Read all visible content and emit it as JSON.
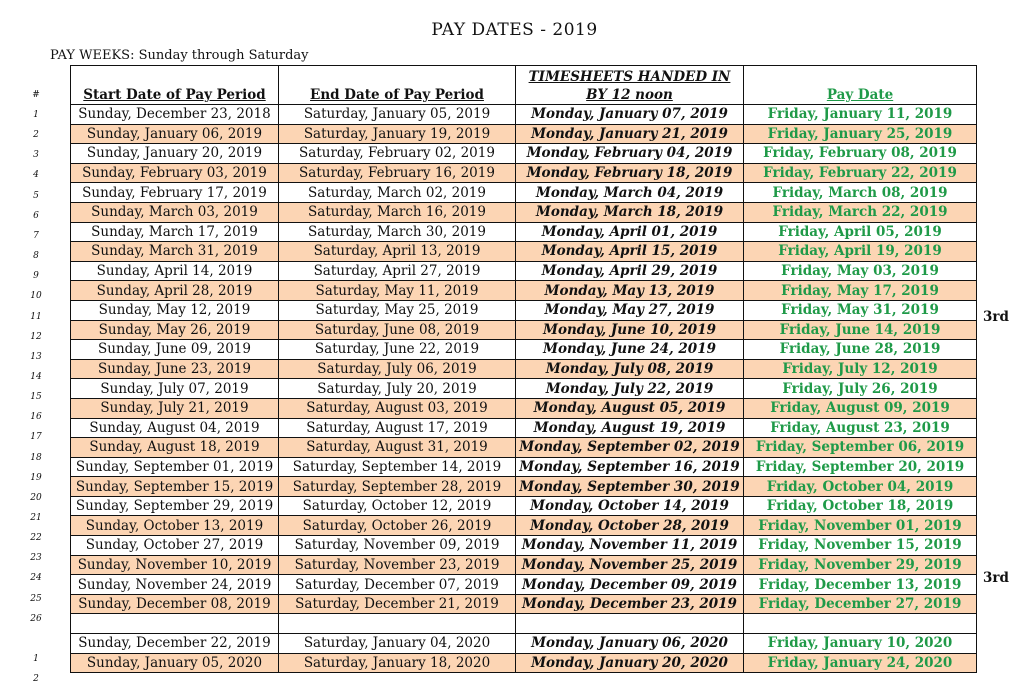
{
  "title": "PAY DATES - 2019",
  "subtitle": "PAY WEEKS:  Sunday through Saturday",
  "headers": {
    "num": "#",
    "start": "Start Date of Pay Period",
    "end": "End Date of Pay Period",
    "timesheet": "TIMESHEETS HANDED IN BY 12 noon",
    "pay": "Pay Date"
  },
  "colors": {
    "pay_green": "#1f9a48",
    "alt_row": "#fcd5b4"
  },
  "rows": [
    {
      "n": "1",
      "start": "Sunday, December 23, 2018",
      "end": "Saturday, January 05, 2019",
      "ts": "Monday, January 07, 2019",
      "pay": "Friday, January 11, 2019"
    },
    {
      "n": "2",
      "start": "Sunday, January 06, 2019",
      "end": "Saturday, January 19, 2019",
      "ts": "Monday, January 21, 2019",
      "pay": "Friday, January 25, 2019"
    },
    {
      "n": "3",
      "start": "Sunday, January 20, 2019",
      "end": "Saturday, February 02, 2019",
      "ts": "Monday, February 04, 2019",
      "pay": "Friday, February 08, 2019"
    },
    {
      "n": "4",
      "start": "Sunday, February 03, 2019",
      "end": "Saturday, February 16, 2019",
      "ts": "Monday, February 18, 2019",
      "pay": "Friday, February 22, 2019"
    },
    {
      "n": "5",
      "start": "Sunday, February 17, 2019",
      "end": "Saturday, March 02, 2019",
      "ts": "Monday, March 04, 2019",
      "pay": "Friday, March 08, 2019"
    },
    {
      "n": "6",
      "start": "Sunday, March 03, 2019",
      "end": "Saturday, March 16, 2019",
      "ts": "Monday, March 18, 2019",
      "pay": "Friday, March 22, 2019"
    },
    {
      "n": "7",
      "start": "Sunday, March 17, 2019",
      "end": "Saturday, March 30, 2019",
      "ts": "Monday, April 01, 2019",
      "pay": "Friday, April 05, 2019"
    },
    {
      "n": "8",
      "start": "Sunday, March 31, 2019",
      "end": "Saturday, April 13, 2019",
      "ts": "Monday, April 15, 2019",
      "pay": "Friday, April 19, 2019"
    },
    {
      "n": "9",
      "start": "Sunday, April 14, 2019",
      "end": "Saturday, April 27, 2019",
      "ts": "Monday, April 29, 2019",
      "pay": "Friday, May 03, 2019"
    },
    {
      "n": "10",
      "start": "Sunday, April 28, 2019",
      "end": "Saturday, May 11, 2019",
      "ts": "Monday, May 13, 2019",
      "pay": "Friday, May 17, 2019"
    },
    {
      "n": "11",
      "start": "Sunday, May 12, 2019",
      "end": "Saturday, May 25, 2019",
      "ts": "Monday, May 27, 2019",
      "pay": "Friday, May 31, 2019",
      "note": "3rd"
    },
    {
      "n": "12",
      "start": "Sunday, May 26, 2019",
      "end": "Saturday, June 08, 2019",
      "ts": "Monday, June 10, 2019",
      "pay": "Friday, June 14, 2019"
    },
    {
      "n": "13",
      "start": "Sunday, June 09, 2019",
      "end": "Saturday, June 22, 2019",
      "ts": "Monday, June 24, 2019",
      "pay": "Friday, June 28, 2019"
    },
    {
      "n": "14",
      "start": "Sunday, June 23, 2019",
      "end": "Saturday, July 06, 2019",
      "ts": "Monday, July 08, 2019",
      "pay": "Friday, July 12, 2019"
    },
    {
      "n": "15",
      "start": "Sunday, July 07, 2019",
      "end": "Saturday, July 20, 2019",
      "ts": "Monday, July 22, 2019",
      "pay": "Friday, July 26, 2019"
    },
    {
      "n": "16",
      "start": "Sunday, July 21, 2019",
      "end": "Saturday, August 03, 2019",
      "ts": "Monday, August 05, 2019",
      "pay": "Friday, August 09, 2019"
    },
    {
      "n": "17",
      "start": "Sunday, August 04, 2019",
      "end": "Saturday, August 17, 2019",
      "ts": "Monday, August 19, 2019",
      "pay": "Friday, August 23, 2019"
    },
    {
      "n": "18",
      "start": "Sunday, August 18, 2019",
      "end": "Saturday, August 31, 2019",
      "ts": "Monday, September 02, 2019",
      "pay": "Friday, September 06, 2019"
    },
    {
      "n": "19",
      "start": "Sunday, September 01, 2019",
      "end": "Saturday, September 14, 2019",
      "ts": "Monday, September 16, 2019",
      "pay": "Friday, September 20, 2019"
    },
    {
      "n": "20",
      "start": "Sunday, September 15, 2019",
      "end": "Saturday, September 28, 2019",
      "ts": "Monday, September 30, 2019",
      "pay": "Friday, October 04, 2019"
    },
    {
      "n": "21",
      "start": "Sunday, September 29, 2019",
      "end": "Saturday, October 12, 2019",
      "ts": "Monday, October 14, 2019",
      "pay": "Friday, October 18, 2019"
    },
    {
      "n": "22",
      "start": "Sunday, October 13, 2019",
      "end": "Saturday, October 26, 2019",
      "ts": "Monday, October 28, 2019",
      "pay": "Friday, November 01, 2019"
    },
    {
      "n": "23",
      "start": "Sunday, October 27, 2019",
      "end": "Saturday, November 09, 2019",
      "ts": "Monday, November 11, 2019",
      "pay": "Friday, November 15, 2019"
    },
    {
      "n": "24",
      "start": "Sunday, November 10, 2019",
      "end": "Saturday, November 23, 2019",
      "ts": "Monday, November 25, 2019",
      "pay": "Friday, November 29, 2019",
      "note": "3rd"
    },
    {
      "n": "25",
      "start": "Sunday, November 24, 2019",
      "end": "Saturday, December 07, 2019",
      "ts": "Monday, December 09, 2019",
      "pay": "Friday, December 13, 2019"
    },
    {
      "n": "26",
      "start": "Sunday, December 08, 2019",
      "end": "Saturday, December 21, 2019",
      "ts": "Monday, December 23, 2019",
      "pay": "Friday, December 27, 2019"
    },
    {
      "blank": true
    },
    {
      "n": "1",
      "start": "Sunday, December 22, 2019",
      "end": "Saturday, January 04, 2020",
      "ts": "Monday, January 06, 2020",
      "pay": "Friday, January 10, 2020"
    },
    {
      "n": "2",
      "start": "Sunday, January 05, 2020",
      "end": "Saturday, January 18, 2020",
      "ts": "Monday, January 20, 2020",
      "pay": "Friday, January 24, 2020",
      "alt": true
    }
  ]
}
